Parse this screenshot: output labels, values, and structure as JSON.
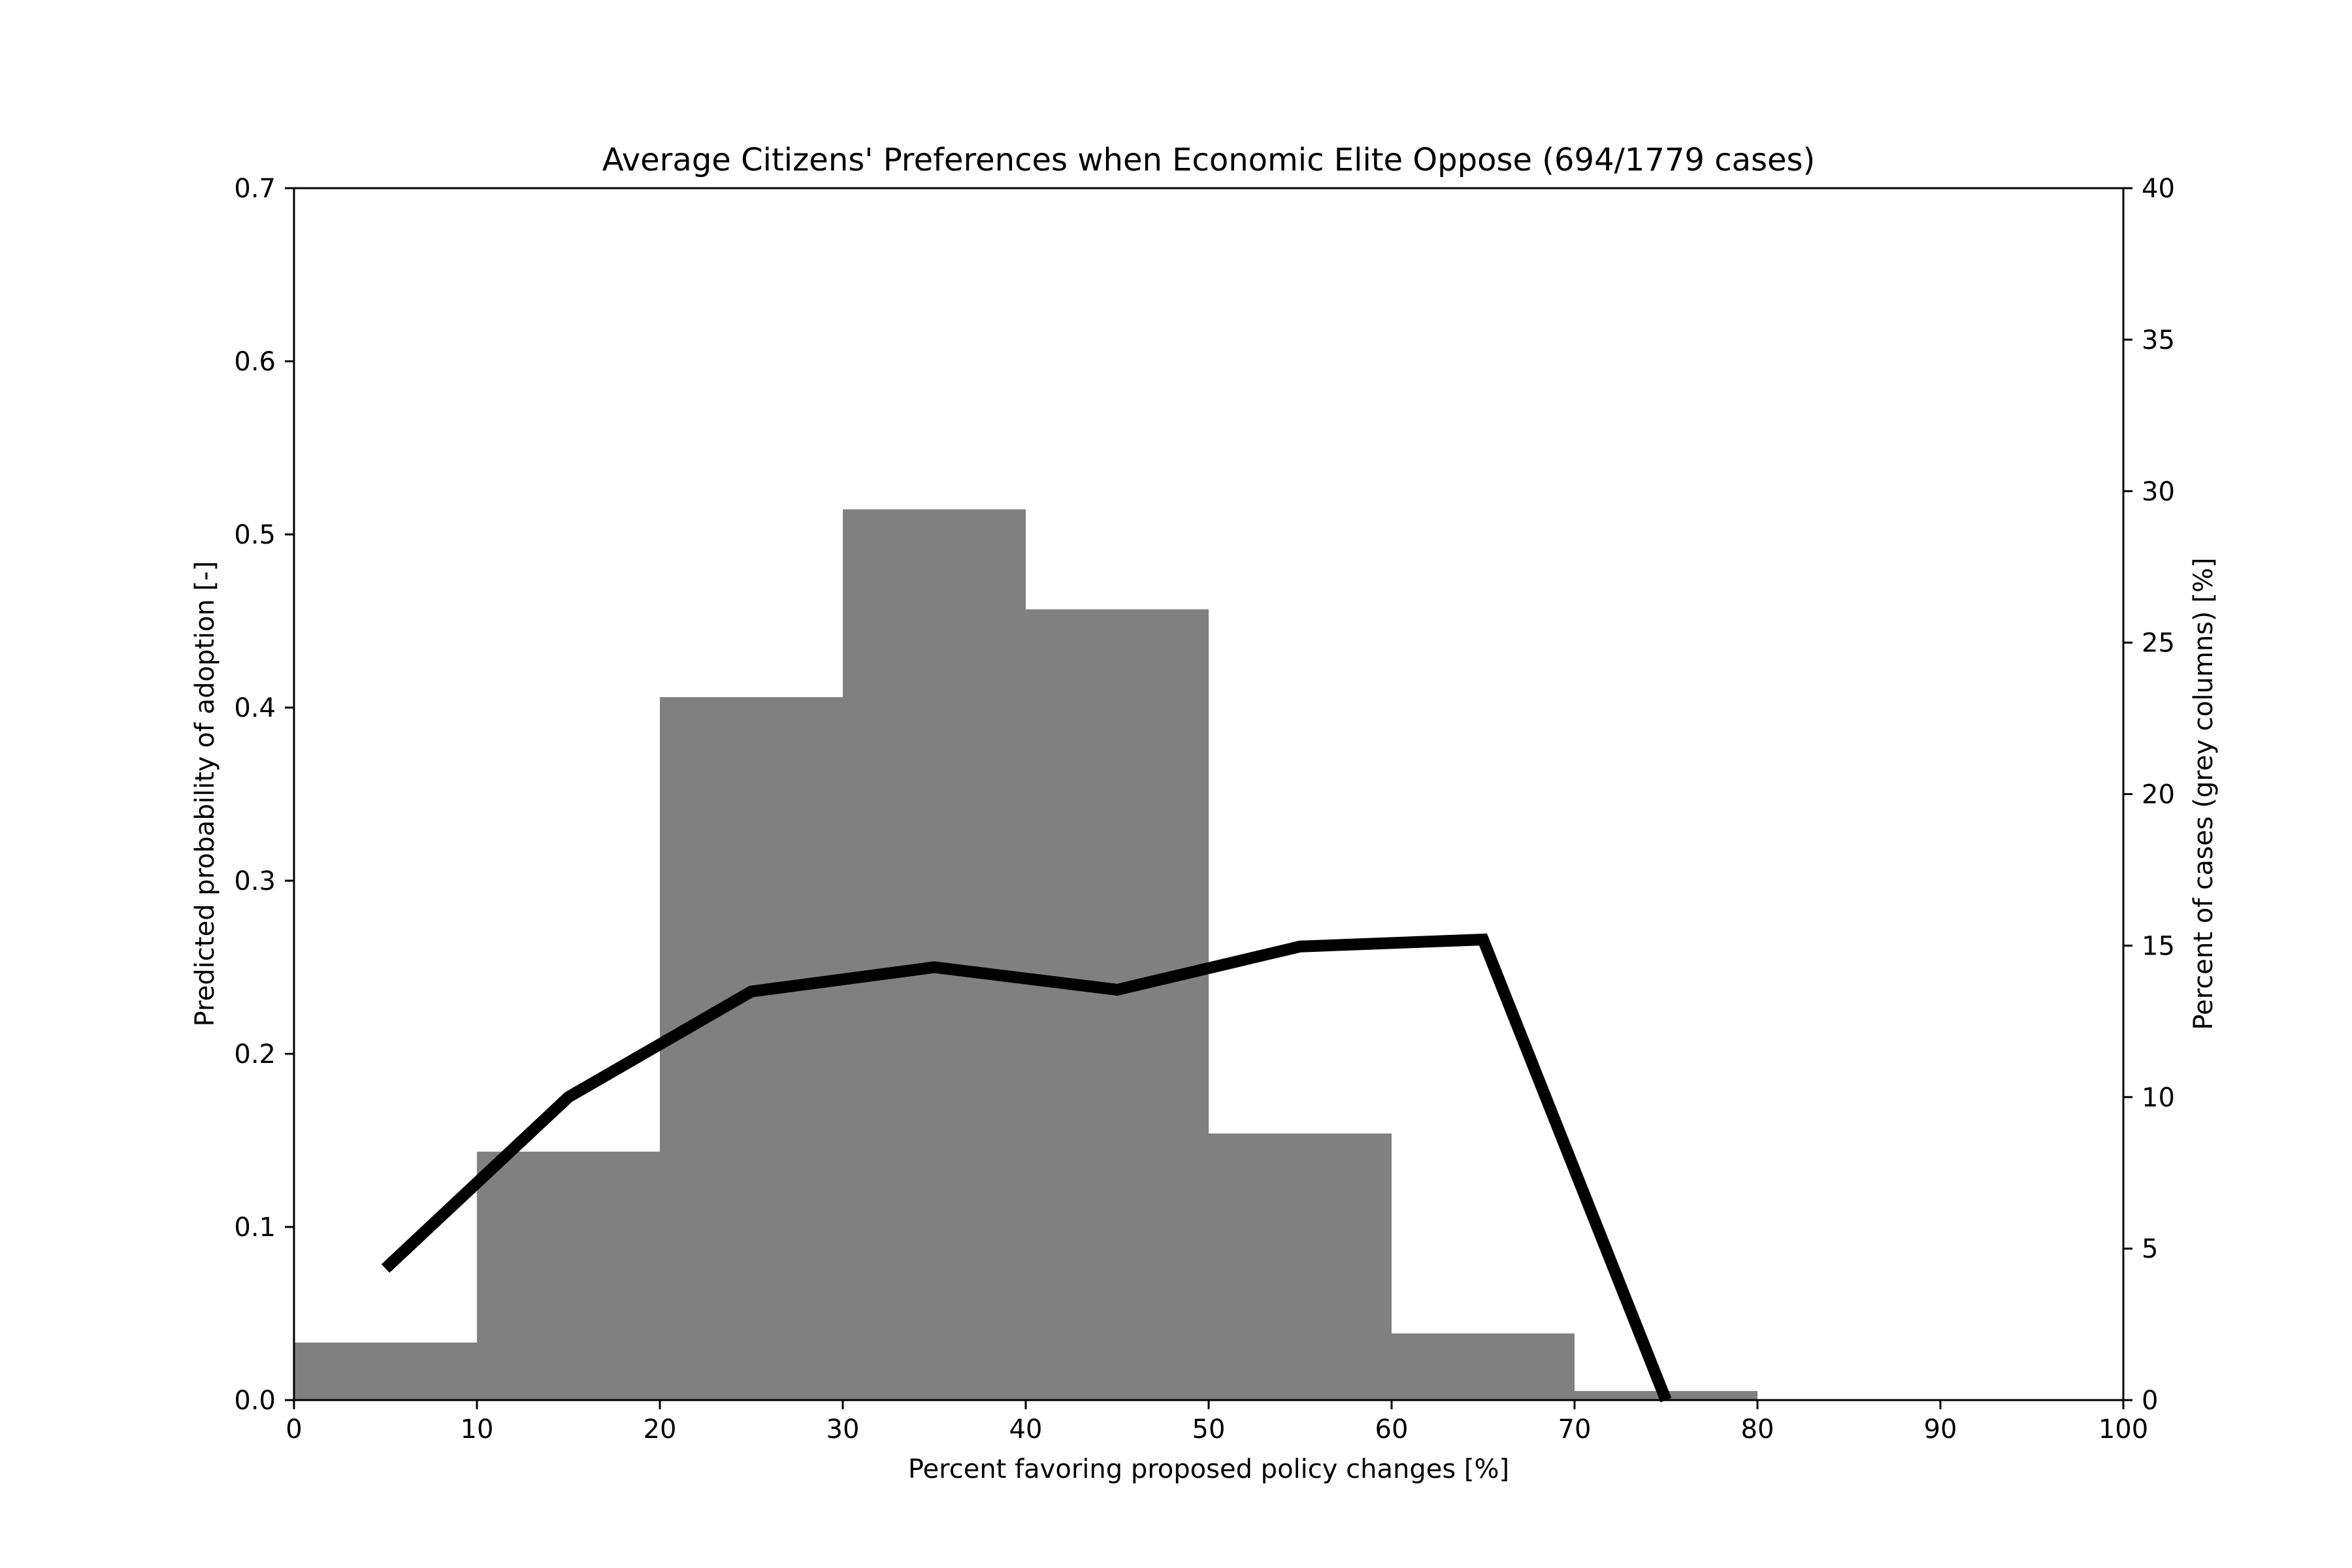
{
  "chart_data": {
    "type": "bar+line",
    "title": "Average Citizens' Preferences when Economic Elite Oppose (694/1779 cases)",
    "xlabel": "Percent favoring proposed policy changes [%]",
    "ylabel_left": "Predicted probability of adoption [-]",
    "ylabel_right": "Percent of cases (grey columns) [%]",
    "xlim": [
      0,
      100
    ],
    "ylim_left": [
      0,
      0.7
    ],
    "ylim_right": [
      0,
      40
    ],
    "x_ticks": [
      "0",
      "10",
      "20",
      "30",
      "40",
      "50",
      "60",
      "70",
      "80",
      "90",
      "100"
    ],
    "y_left_ticks": [
      "0.0",
      "0.1",
      "0.2",
      "0.3",
      "0.4",
      "0.5",
      "0.6",
      "0.7"
    ],
    "y_right_ticks": [
      "0",
      "5",
      "10",
      "15",
      "20",
      "25",
      "30",
      "35",
      "40"
    ],
    "histogram": {
      "name": "Percent of cases",
      "axis": "right",
      "color": "#808080",
      "bins": [
        {
          "x0": 0,
          "x1": 10,
          "value": 1.9
        },
        {
          "x0": 10,
          "x1": 20,
          "value": 8.2
        },
        {
          "x0": 20,
          "x1": 30,
          "value": 23.2
        },
        {
          "x0": 30,
          "x1": 40,
          "value": 29.4
        },
        {
          "x0": 40,
          "x1": 50,
          "value": 26.1
        },
        {
          "x0": 50,
          "x1": 60,
          "value": 8.8
        },
        {
          "x0": 60,
          "x1": 70,
          "value": 2.2
        },
        {
          "x0": 70,
          "x1": 80,
          "value": 0.3
        }
      ]
    },
    "line": {
      "name": "Predicted probability",
      "axis": "left",
      "color": "#000000",
      "x": [
        5,
        15,
        25,
        35,
        45,
        55,
        65,
        75
      ],
      "y": [
        0.076,
        0.175,
        0.236,
        0.25,
        0.237,
        0.262,
        0.266,
        0.0
      ]
    },
    "grid": false,
    "legend": "none"
  }
}
